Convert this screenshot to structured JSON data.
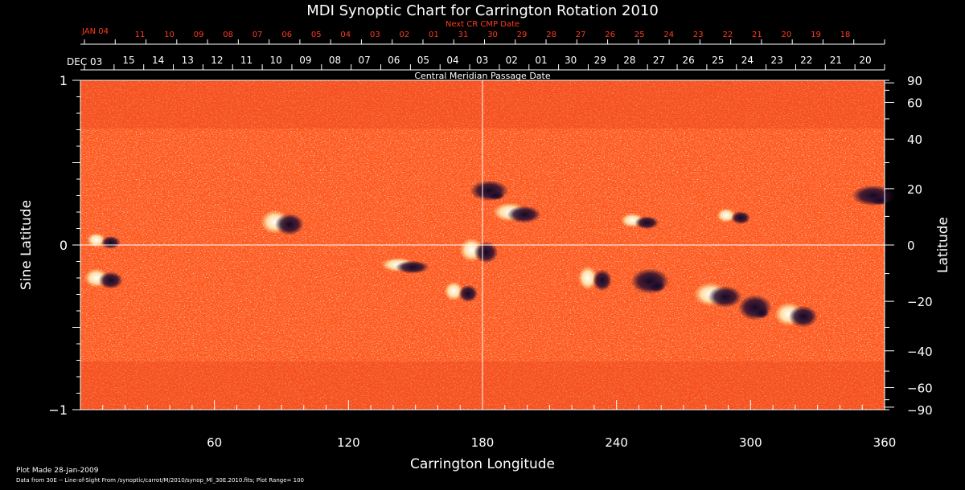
{
  "chart_data": {
    "type": "heatmap",
    "title": "MDI Synoptic Chart for Carrington Rotation 2010",
    "xlabel": "Carrington Longitude",
    "ylabel_left": "Sine Latitude",
    "ylabel_right": "Latitude",
    "xlim": [
      0,
      360
    ],
    "ylim": [
      -1,
      1
    ],
    "x_ticks": [
      60,
      120,
      180,
      240,
      300,
      360
    ],
    "y_ticks_left": [
      {
        "value": 1,
        "label": "1"
      },
      {
        "value": 0,
        "label": "0"
      },
      {
        "value": -1,
        "label": "−1"
      }
    ],
    "y_ticks_right": [
      90,
      60,
      40,
      20,
      0,
      -20,
      -40,
      -60,
      -90
    ],
    "y_ticks_right_labels": [
      "90",
      "60",
      "40",
      "20",
      "0",
      "−20",
      "−40",
      "−60",
      "−90"
    ],
    "top_axis_label": "Central Meridian Passage Date",
    "top_axis_start": "DEC 03",
    "top_axis_dates": [
      "15",
      "14",
      "13",
      "12",
      "11",
      "10",
      "09",
      "08",
      "07",
      "06",
      "05",
      "04",
      "03",
      "02",
      "01",
      "30",
      "29",
      "28",
      "27",
      "26",
      "25",
      "24",
      "23",
      "22",
      "21",
      "20"
    ],
    "next_cr_label": "Next CR CMP Date",
    "next_cr_start": "JAN 04",
    "next_cr_dates": [
      "11",
      "10",
      "09",
      "08",
      "07",
      "06",
      "05",
      "04",
      "03",
      "02",
      "01",
      "31",
      "30",
      "29",
      "28",
      "27",
      "26",
      "25",
      "24",
      "23",
      "22",
      "21",
      "20",
      "19",
      "18"
    ],
    "grid": "lines at longitude 180 and sine latitude 0",
    "colors": {
      "background_field": "#ff5a1e",
      "positive_polarity": "#ffffff",
      "negative_polarity": "#1a1030",
      "axis": "#ffffff",
      "date_axis_top": "#ff3b1f"
    },
    "active_regions": [
      {
        "lon": 10,
        "sinlat": 0.03,
        "polarity": "mixed"
      },
      {
        "lon": 10,
        "sinlat": -0.2,
        "polarity": "mixed"
      },
      {
        "lon": 90,
        "sinlat": 0.14,
        "polarity": "mixed"
      },
      {
        "lon": 145,
        "sinlat": -0.12,
        "polarity": "mixed"
      },
      {
        "lon": 170,
        "sinlat": -0.28,
        "polarity": "mixed"
      },
      {
        "lon": 178,
        "sinlat": -0.03,
        "polarity": "mixed"
      },
      {
        "lon": 183,
        "sinlat": 0.33,
        "polarity": "negative"
      },
      {
        "lon": 195,
        "sinlat": 0.2,
        "polarity": "mixed"
      },
      {
        "lon": 230,
        "sinlat": -0.2,
        "polarity": "mixed"
      },
      {
        "lon": 250,
        "sinlat": 0.15,
        "polarity": "mixed"
      },
      {
        "lon": 255,
        "sinlat": -0.22,
        "polarity": "negative"
      },
      {
        "lon": 285,
        "sinlat": -0.3,
        "polarity": "mixed"
      },
      {
        "lon": 292,
        "sinlat": 0.18,
        "polarity": "mixed"
      },
      {
        "lon": 302,
        "sinlat": -0.38,
        "polarity": "negative"
      },
      {
        "lon": 320,
        "sinlat": -0.42,
        "polarity": "mixed"
      },
      {
        "lon": 355,
        "sinlat": 0.3,
        "polarity": "negative"
      }
    ]
  },
  "footer": {
    "plot_made": "Plot Made 28-Jan-2009",
    "data_from": "Data from 30E -- Line-of-Sight From /synoptic/carrot/M/2010/synop_Ml_30E.2010.fits; Plot Range= 100"
  }
}
